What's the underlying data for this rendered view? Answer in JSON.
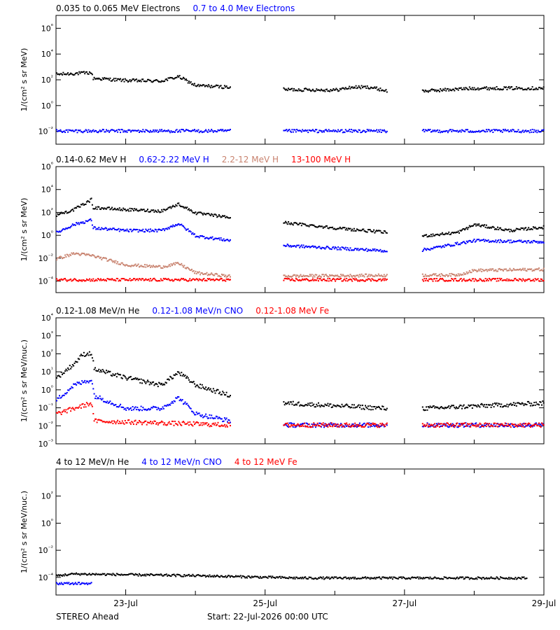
{
  "footer": {
    "spacecraft": "STEREO Ahead",
    "start": "Start: 22-Jul-2026 00:00 UTC"
  },
  "chart_data": [
    {
      "type": "scatter",
      "xaxis": {
        "type": "date",
        "range": [
          "2026-07-22T00:00",
          "2026-07-29T00:00"
        ],
        "tick_labels": [
          "23-Jul",
          "25-Jul",
          "27-Jul",
          "29-Jul"
        ]
      },
      "yscale": "log",
      "ylabel": "1/(cm² s sr MeV)",
      "ytick_labels": [
        "10⁶",
        "10⁴",
        "10²",
        "10⁰",
        "10⁻²"
      ],
      "ylim": [
        0.001,
        10000000
      ],
      "data_gaps": [
        [
          "2026-07-24T12:00",
          "2026-07-25T06:00"
        ],
        [
          "2026-07-26T18:00",
          "2026-07-27T06:00"
        ]
      ],
      "series": [
        {
          "name": "0.035 to 0.065 MeV Electrons",
          "color": "#000000",
          "points": [
            [
              "2026-07-22T00:00",
              300
            ],
            [
              "2026-07-22T12:00",
              400
            ],
            [
              "2026-07-22T12:30",
              150
            ],
            [
              "2026-07-23T00:00",
              100
            ],
            [
              "2026-07-23T12:00",
              90
            ],
            [
              "2026-07-23T18:00",
              200
            ],
            [
              "2026-07-24T00:00",
              40
            ],
            [
              "2026-07-24T12:00",
              30
            ],
            [
              "2026-07-25T06:00",
              20
            ],
            [
              "2026-07-26T00:00",
              18
            ],
            [
              "2026-07-26T06:00",
              30
            ],
            [
              "2026-07-26T12:00",
              30
            ],
            [
              "2026-07-26T18:00",
              15
            ],
            [
              "2026-07-27T06:00",
              15
            ],
            [
              "2026-07-28T00:00",
              25
            ],
            [
              "2026-07-29T00:00",
              25
            ]
          ]
        },
        {
          "name": "0.7 to 4.0 Mev Electrons",
          "color": "#0000ff",
          "points": [
            [
              "2026-07-22T00:00",
              0.012
            ],
            [
              "2026-07-24T12:00",
              0.012
            ],
            [
              "2026-07-25T06:00",
              0.012
            ],
            [
              "2026-07-26T18:00",
              0.012
            ],
            [
              "2026-07-27T06:00",
              0.012
            ],
            [
              "2026-07-29T00:00",
              0.012
            ]
          ]
        }
      ]
    },
    {
      "type": "scatter",
      "xaxis": {
        "type": "date",
        "range": [
          "2026-07-22T00:00",
          "2026-07-29T00:00"
        ],
        "tick_labels": [
          "23-Jul",
          "25-Jul",
          "27-Jul",
          "29-Jul"
        ]
      },
      "yscale": "log",
      "ylabel": "1/(cm² s sr MeV)",
      "ytick_labels": [
        "10⁶",
        "10⁴",
        "10²",
        "10⁰",
        "10⁻²",
        "10⁻⁴"
      ],
      "ylim": [
        1e-05,
        1000000
      ],
      "data_gaps": [
        [
          "2026-07-24T12:00",
          "2026-07-25T06:00"
        ],
        [
          "2026-07-26T18:00",
          "2026-07-27T06:00"
        ]
      ],
      "series": [
        {
          "name": "0.14-0.62 MeV H",
          "color": "#000000",
          "points": [
            [
              "2026-07-22T00:00",
              70
            ],
            [
              "2026-07-22T06:00",
              200
            ],
            [
              "2026-07-22T12:00",
              1500
            ],
            [
              "2026-07-22T12:30",
              300
            ],
            [
              "2026-07-23T00:00",
              200
            ],
            [
              "2026-07-23T12:00",
              150
            ],
            [
              "2026-07-23T18:00",
              600
            ],
            [
              "2026-07-24T00:00",
              100
            ],
            [
              "2026-07-24T12:00",
              40
            ],
            [
              "2026-07-25T06:00",
              15
            ],
            [
              "2026-07-26T00:00",
              5
            ],
            [
              "2026-07-26T18:00",
              2
            ],
            [
              "2026-07-27T06:00",
              1
            ],
            [
              "2026-07-27T18:00",
              2
            ],
            [
              "2026-07-28T00:00",
              10
            ],
            [
              "2026-07-28T12:00",
              3
            ],
            [
              "2026-07-29T00:00",
              6
            ]
          ]
        },
        {
          "name": "0.62-2.22 MeV H",
          "color": "#0000ff",
          "points": [
            [
              "2026-07-22T00:00",
              2
            ],
            [
              "2026-07-22T06:00",
              10
            ],
            [
              "2026-07-22T12:00",
              25
            ],
            [
              "2026-07-22T12:30",
              5
            ],
            [
              "2026-07-23T00:00",
              3
            ],
            [
              "2026-07-23T12:00",
              3
            ],
            [
              "2026-07-23T18:00",
              12
            ],
            [
              "2026-07-24T00:00",
              1
            ],
            [
              "2026-07-24T12:00",
              0.4
            ],
            [
              "2026-07-25T06:00",
              0.15
            ],
            [
              "2026-07-26T18:00",
              0.05
            ],
            [
              "2026-07-27T06:00",
              0.06
            ],
            [
              "2026-07-28T00:00",
              0.4
            ],
            [
              "2026-07-29T00:00",
              0.3
            ]
          ]
        },
        {
          "name": "2.2-12 MeV H",
          "color": "#c8826e",
          "points": [
            [
              "2026-07-22T00:00",
              0.01
            ],
            [
              "2026-07-22T06:00",
              0.03
            ],
            [
              "2026-07-22T12:00",
              0.02
            ],
            [
              "2026-07-23T00:00",
              0.003
            ],
            [
              "2026-07-23T12:00",
              0.002
            ],
            [
              "2026-07-23T18:00",
              0.004
            ],
            [
              "2026-07-24T00:00",
              0.0006
            ],
            [
              "2026-07-24T12:00",
              0.0003
            ],
            [
              "2026-07-27T18:00",
              0.0004
            ],
            [
              "2026-07-28T00:00",
              0.001
            ],
            [
              "2026-07-29T00:00",
              0.0012
            ]
          ]
        },
        {
          "name": "13-100 MeV H",
          "color": "#ff0000",
          "points": [
            [
              "2026-07-22T00:00",
              0.00015
            ],
            [
              "2026-07-24T12:00",
              0.00015
            ],
            [
              "2026-07-25T06:00",
              0.00015
            ],
            [
              "2026-07-26T18:00",
              0.00015
            ],
            [
              "2026-07-27T06:00",
              0.00015
            ],
            [
              "2026-07-29T00:00",
              0.00015
            ]
          ]
        }
      ]
    },
    {
      "type": "scatter",
      "xaxis": {
        "type": "date",
        "range": [
          "2026-07-22T00:00",
          "2026-07-29T00:00"
        ],
        "tick_labels": [
          "23-Jul",
          "25-Jul",
          "27-Jul",
          "29-Jul"
        ]
      },
      "yscale": "log",
      "ylabel": "1/(cm² s sr MeV/nuc.)",
      "ytick_labels": [
        "10⁴",
        "10³",
        "10²",
        "10¹",
        "10⁰",
        "10⁻¹",
        "10⁻²",
        "10⁻³"
      ],
      "ylim": [
        0.001,
        10000
      ],
      "data_gaps": [
        [
          "2026-07-24T12:00",
          "2026-07-25T06:00"
        ],
        [
          "2026-07-26T18:00",
          "2026-07-27T06:00"
        ]
      ],
      "series": [
        {
          "name": "0.12-1.08 MeV/n He",
          "color": "#000000",
          "points": [
            [
              "2026-07-22T00:00",
              5
            ],
            [
              "2026-07-22T06:00",
              30
            ],
            [
              "2026-07-22T09:00",
              100
            ],
            [
              "2026-07-22T12:00",
              120
            ],
            [
              "2026-07-22T13:00",
              15
            ],
            [
              "2026-07-23T00:00",
              5
            ],
            [
              "2026-07-23T12:00",
              2
            ],
            [
              "2026-07-23T18:00",
              10
            ],
            [
              "2026-07-24T00:00",
              2
            ],
            [
              "2026-07-24T12:00",
              0.5
            ],
            [
              "2026-07-25T06:00",
              0.2
            ],
            [
              "2026-07-26T18:00",
              0.1
            ],
            [
              "2026-07-27T06:00",
              0.1
            ],
            [
              "2026-07-29T00:00",
              0.2
            ]
          ]
        },
        {
          "name": "0.12-1.08 MeV/n CNO",
          "color": "#0000ff",
          "points": [
            [
              "2026-07-22T00:00",
              0.3
            ],
            [
              "2026-07-22T06:00",
              2
            ],
            [
              "2026-07-22T12:00",
              4
            ],
            [
              "2026-07-22T13:00",
              0.5
            ],
            [
              "2026-07-23T00:00",
              0.1
            ],
            [
              "2026-07-23T12:00",
              0.1
            ],
            [
              "2026-07-23T18:00",
              0.4
            ],
            [
              "2026-07-24T00:00",
              0.05
            ],
            [
              "2026-07-24T12:00",
              0.02
            ],
            [
              "2026-07-25T06:00",
              0.012
            ],
            [
              "2026-07-29T00:00",
              0.012
            ]
          ]
        },
        {
          "name": "0.12-1.08 MeV Fe",
          "color": "#ff0000",
          "points": [
            [
              "2026-07-22T00:00",
              0.05
            ],
            [
              "2026-07-22T12:00",
              0.2
            ],
            [
              "2026-07-22T13:00",
              0.02
            ],
            [
              "2026-07-24T12:00",
              0.012
            ],
            [
              "2026-07-25T06:00",
              0.012
            ],
            [
              "2026-07-29T00:00",
              0.012
            ]
          ]
        }
      ]
    },
    {
      "type": "scatter",
      "xaxis": {
        "type": "date",
        "range": [
          "2026-07-22T00:00",
          "2026-07-29T00:00"
        ],
        "tick_labels": [
          "23-Jul",
          "25-Jul",
          "27-Jul",
          "29-Jul"
        ]
      },
      "yscale": "log",
      "ylabel": "1/(cm² s sr MeV/nuc.)",
      "ytick_labels": [
        "10²",
        "10⁰",
        "10⁻²",
        "10⁻⁴"
      ],
      "ylim": [
        5e-06,
        10000
      ],
      "series": [
        {
          "name": "4 to 12 MeV/n He",
          "color": "#000000",
          "points": [
            [
              "2026-07-22T00:00",
              0.00015
            ],
            [
              "2026-07-22T06:00",
              0.0002
            ],
            [
              "2026-07-24T00:00",
              0.00015
            ],
            [
              "2026-07-25T12:00",
              0.0001
            ],
            [
              "2026-07-28T18:00",
              0.0001
            ]
          ]
        },
        {
          "name": "4 to 12 MeV/n CNO",
          "color": "#0000ff",
          "points": [
            [
              "2026-07-22T00:00",
              4e-05
            ],
            [
              "2026-07-22T12:00",
              4e-05
            ]
          ]
        },
        {
          "name": "4 to 12 MeV Fe",
          "color": "#ff0000",
          "points": []
        }
      ]
    }
  ]
}
